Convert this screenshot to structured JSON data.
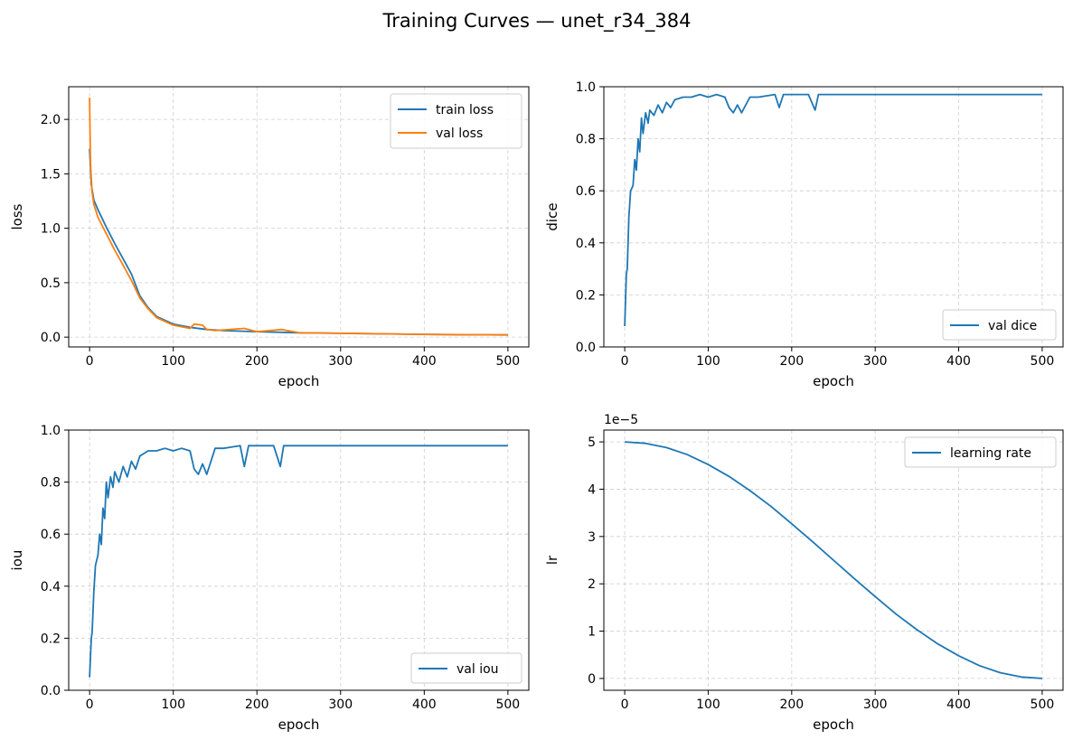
{
  "figure": {
    "title": "Training Curves — unet_r34_384"
  },
  "chart_data": [
    {
      "type": "line",
      "xlabel": "epoch",
      "ylabel": "loss",
      "xlim": [
        -25,
        525
      ],
      "ylim": [
        -0.09,
        2.3
      ],
      "xticks": [
        0,
        100,
        200,
        300,
        400,
        500
      ],
      "xtick_labels": [
        "0",
        "100",
        "200",
        "300",
        "400",
        "500"
      ],
      "yticks": [
        0.0,
        0.5,
        1.0,
        1.5,
        2.0
      ],
      "ytick_labels": [
        "0.0",
        "0.5",
        "1.0",
        "1.5",
        "2.0"
      ],
      "grid": true,
      "legend": "top-right",
      "series": [
        {
          "name": "train loss",
          "color": "#1f77b4",
          "x": [
            0,
            2,
            5,
            10,
            20,
            30,
            40,
            50,
            60,
            70,
            80,
            100,
            120,
            140,
            160,
            200,
            250,
            300,
            350,
            400,
            450,
            500
          ],
          "y": [
            1.73,
            1.4,
            1.26,
            1.17,
            1.01,
            0.86,
            0.72,
            0.58,
            0.38,
            0.27,
            0.19,
            0.12,
            0.09,
            0.07,
            0.06,
            0.05,
            0.04,
            0.035,
            0.03,
            0.025,
            0.022,
            0.02
          ]
        },
        {
          "name": "val loss",
          "color": "#ff7f0e",
          "x": [
            0,
            1,
            3,
            5,
            10,
            20,
            30,
            40,
            50,
            60,
            70,
            80,
            100,
            120,
            125,
            135,
            140,
            150,
            185,
            200,
            230,
            250,
            300,
            350,
            400,
            450,
            500
          ],
          "y": [
            2.2,
            1.6,
            1.33,
            1.22,
            1.1,
            0.95,
            0.8,
            0.66,
            0.52,
            0.36,
            0.26,
            0.18,
            0.11,
            0.08,
            0.12,
            0.11,
            0.07,
            0.06,
            0.08,
            0.05,
            0.07,
            0.04,
            0.035,
            0.03,
            0.025,
            0.022,
            0.02
          ]
        }
      ]
    },
    {
      "type": "line",
      "xlabel": "epoch",
      "ylabel": "dice",
      "xlim": [
        -25,
        525
      ],
      "ylim": [
        0.0,
        1.0
      ],
      "xticks": [
        0,
        100,
        200,
        300,
        400,
        500
      ],
      "xtick_labels": [
        "0",
        "100",
        "200",
        "300",
        "400",
        "500"
      ],
      "yticks": [
        0.0,
        0.2,
        0.4,
        0.6,
        0.8,
        1.0
      ],
      "ytick_labels": [
        "0.0",
        "0.2",
        "0.4",
        "0.6",
        "0.8",
        "1.0"
      ],
      "grid": true,
      "legend": "bottom-right",
      "series": [
        {
          "name": "val dice",
          "color": "#1f77b4",
          "x": [
            0,
            2,
            3,
            5,
            7,
            10,
            12,
            14,
            16,
            18,
            20,
            22,
            25,
            28,
            30,
            35,
            40,
            45,
            50,
            55,
            60,
            70,
            80,
            90,
            100,
            110,
            120,
            125,
            130,
            135,
            140,
            150,
            160,
            180,
            185,
            190,
            200,
            220,
            228,
            232,
            240,
            260,
            280,
            300,
            320,
            350,
            400,
            450,
            500
          ],
          "y": [
            0.08,
            0.28,
            0.3,
            0.5,
            0.6,
            0.62,
            0.72,
            0.68,
            0.8,
            0.75,
            0.88,
            0.82,
            0.9,
            0.86,
            0.91,
            0.89,
            0.93,
            0.9,
            0.94,
            0.92,
            0.95,
            0.96,
            0.96,
            0.97,
            0.96,
            0.97,
            0.96,
            0.92,
            0.9,
            0.93,
            0.9,
            0.96,
            0.96,
            0.97,
            0.92,
            0.97,
            0.97,
            0.97,
            0.91,
            0.97,
            0.97,
            0.97,
            0.97,
            0.97,
            0.97,
            0.97,
            0.97,
            0.97,
            0.97
          ]
        }
      ]
    },
    {
      "type": "line",
      "xlabel": "epoch",
      "ylabel": "iou",
      "xlim": [
        -25,
        525
      ],
      "ylim": [
        0.0,
        1.0
      ],
      "xticks": [
        0,
        100,
        200,
        300,
        400,
        500
      ],
      "xtick_labels": [
        "0",
        "100",
        "200",
        "300",
        "400",
        "500"
      ],
      "yticks": [
        0.0,
        0.2,
        0.4,
        0.6,
        0.8,
        1.0
      ],
      "ytick_labels": [
        "0.0",
        "0.2",
        "0.4",
        "0.6",
        "0.8",
        "1.0"
      ],
      "grid": true,
      "legend": "bottom-right",
      "series": [
        {
          "name": "val iou",
          "color": "#1f77b4",
          "x": [
            0,
            2,
            3,
            5,
            7,
            10,
            12,
            14,
            16,
            18,
            20,
            22,
            25,
            28,
            30,
            35,
            40,
            45,
            50,
            55,
            60,
            70,
            80,
            90,
            100,
            110,
            120,
            125,
            130,
            135,
            140,
            150,
            160,
            180,
            185,
            190,
            200,
            220,
            228,
            232,
            240,
            260,
            280,
            300,
            320,
            350,
            400,
            450,
            500
          ],
          "y": [
            0.05,
            0.2,
            0.22,
            0.38,
            0.48,
            0.52,
            0.6,
            0.56,
            0.7,
            0.66,
            0.8,
            0.74,
            0.82,
            0.78,
            0.84,
            0.8,
            0.86,
            0.82,
            0.88,
            0.85,
            0.9,
            0.92,
            0.92,
            0.93,
            0.92,
            0.93,
            0.92,
            0.85,
            0.83,
            0.87,
            0.83,
            0.93,
            0.93,
            0.94,
            0.86,
            0.94,
            0.94,
            0.94,
            0.86,
            0.94,
            0.94,
            0.94,
            0.94,
            0.94,
            0.94,
            0.94,
            0.94,
            0.94,
            0.94
          ]
        }
      ]
    },
    {
      "type": "line",
      "xlabel": "epoch",
      "ylabel": "lr",
      "offset_text": "1e−5",
      "xlim": [
        -25,
        525
      ],
      "ylim": [
        -0.25,
        5.25
      ],
      "xticks": [
        0,
        100,
        200,
        300,
        400,
        500
      ],
      "xtick_labels": [
        "0",
        "100",
        "200",
        "300",
        "400",
        "500"
      ],
      "yticks": [
        0,
        1,
        2,
        3,
        4,
        5
      ],
      "ytick_labels": [
        "0",
        "1",
        "2",
        "3",
        "4",
        "5"
      ],
      "grid": true,
      "legend": "top-right",
      "series": [
        {
          "name": "learning rate",
          "color": "#1f77b4",
          "x": [
            0,
            25,
            50,
            75,
            100,
            125,
            150,
            175,
            200,
            225,
            250,
            275,
            300,
            325,
            350,
            375,
            400,
            425,
            450,
            475,
            500
          ],
          "y": [
            5.0,
            4.97,
            4.88,
            4.73,
            4.52,
            4.27,
            3.97,
            3.64,
            3.27,
            2.89,
            2.5,
            2.11,
            1.73,
            1.36,
            1.03,
            0.73,
            0.48,
            0.27,
            0.12,
            0.03,
            0.0
          ]
        }
      ]
    }
  ]
}
